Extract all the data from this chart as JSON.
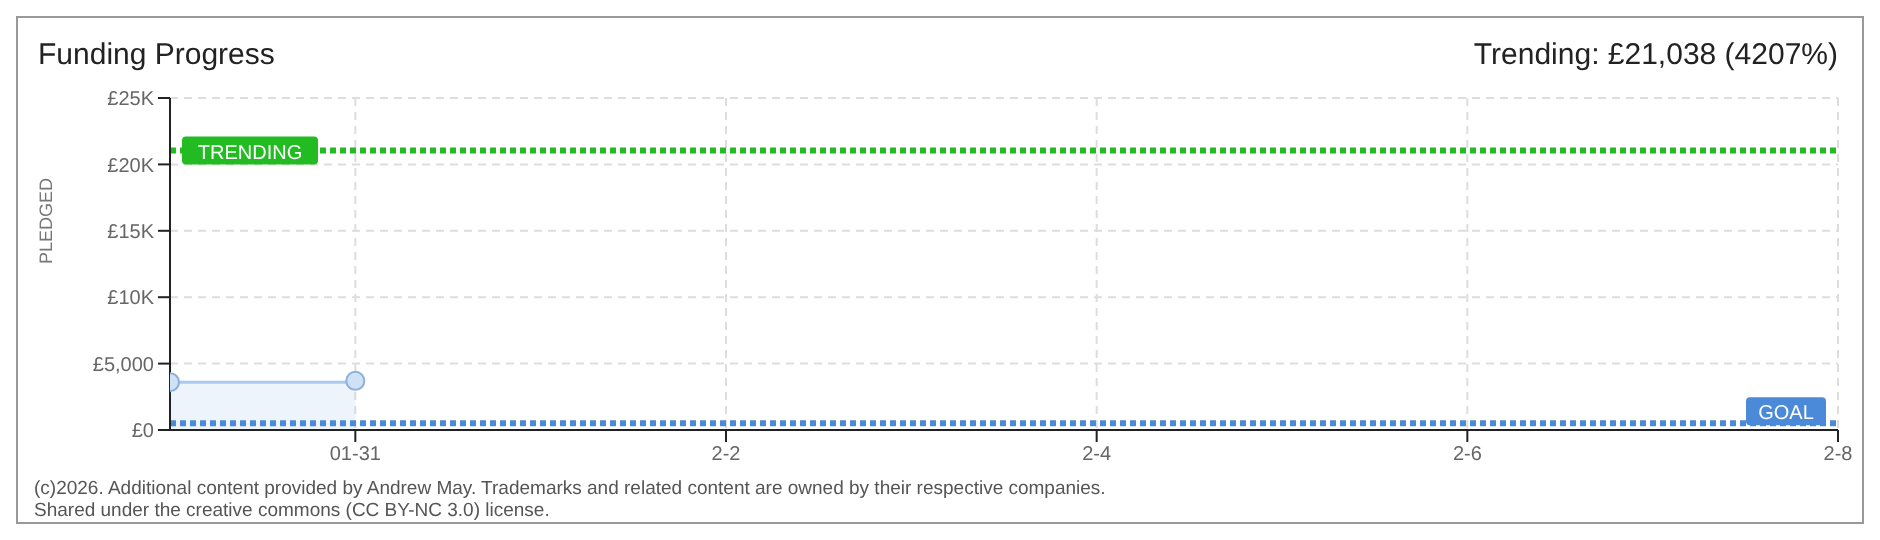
{
  "chart_data": {
    "type": "area",
    "title": "Funding Progress",
    "ylabel": "PLEDGED",
    "annotations": [
      "Trending: £21,038 (4207%)",
      "(c)2026. Additional content provided by Andrew May. Trademarks and related content are owned by their respective companies.",
      "Shared under the creative commons (CC BY-NC 3.0) license."
    ],
    "x": [
      "--01-30",
      "--01-31"
    ],
    "series": [
      {
        "color": "#a9c9ee",
        "values": [
          3600,
          3700
        ]
      }
    ],
    "xlim": [
      "--01-30",
      "--02-08"
    ],
    "xticks": [
      {
        "value": "--01-31",
        "label": "01-31"
      },
      {
        "value": "--02-02",
        "label": "2-2"
      },
      {
        "value": "--02-04",
        "label": "2-4"
      },
      {
        "value": "--02-06",
        "label": "2-6"
      },
      {
        "value": "--02-08",
        "label": "2-8"
      }
    ],
    "ylim": [
      0,
      25000
    ],
    "yticks": [
      {
        "value": 0,
        "label": "£0"
      },
      {
        "value": 5000,
        "label": "£5,000"
      },
      {
        "value": 10000,
        "label": "£10K"
      },
      {
        "value": 15000,
        "label": "£15K"
      },
      {
        "value": 20000,
        "label": "£20K"
      },
      {
        "value": 25000,
        "label": "£25K"
      }
    ],
    "ref_lines": [
      {
        "axis": "y",
        "value": 21038,
        "label": "TRENDING",
        "color": "#22bb22",
        "line_style": "dotted"
      },
      {
        "axis": "y",
        "value": 500,
        "label": "GOAL",
        "color": "#4a8ad8",
        "line_style": "dotted"
      }
    ],
    "grid": true,
    "marker": "circle",
    "legend": false
  }
}
